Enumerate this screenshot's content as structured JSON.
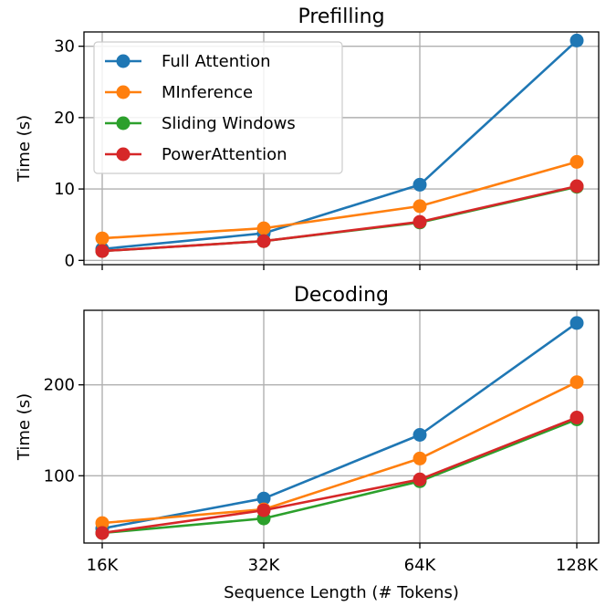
{
  "chart_data": [
    {
      "type": "line",
      "title": "Prefilling",
      "xlabel": "",
      "ylabel": "Time (s)",
      "categories": [
        "16K",
        "32K",
        "64K",
        "128K"
      ],
      "ylim": [
        -0.6,
        32
      ],
      "yticks": [
        0,
        10,
        20,
        30
      ],
      "grid": true,
      "legend": "top-left",
      "series": [
        {
          "name": "Full Attention",
          "color": "#1f77b4",
          "values": [
            1.6,
            3.8,
            10.6,
            30.8
          ]
        },
        {
          "name": "MInference",
          "color": "#ff7f0e",
          "values": [
            3.1,
            4.5,
            7.6,
            13.8
          ]
        },
        {
          "name": "Sliding Windows",
          "color": "#2ca02c",
          "values": [
            1.3,
            2.7,
            5.3,
            10.3
          ]
        },
        {
          "name": "PowerAttention",
          "color": "#d62728",
          "values": [
            1.3,
            2.7,
            5.4,
            10.4
          ]
        }
      ]
    },
    {
      "type": "line",
      "title": "Decoding",
      "xlabel": "Sequence Length (# Tokens)",
      "ylabel": "Time (s)",
      "categories": [
        "16K",
        "32K",
        "64K",
        "128K"
      ],
      "ylim": [
        26,
        282
      ],
      "yticks": [
        100,
        200
      ],
      "grid": true,
      "series": [
        {
          "name": "Full Attention",
          "color": "#1f77b4",
          "values": [
            42,
            75,
            145,
            268
          ]
        },
        {
          "name": "MInference",
          "color": "#ff7f0e",
          "values": [
            48,
            63,
            119,
            203
          ]
        },
        {
          "name": "Sliding Windows",
          "color": "#2ca02c",
          "values": [
            37,
            53,
            94,
            162
          ]
        },
        {
          "name": "PowerAttention",
          "color": "#d62728",
          "values": [
            37,
            62,
            96,
            164
          ]
        }
      ]
    }
  ]
}
